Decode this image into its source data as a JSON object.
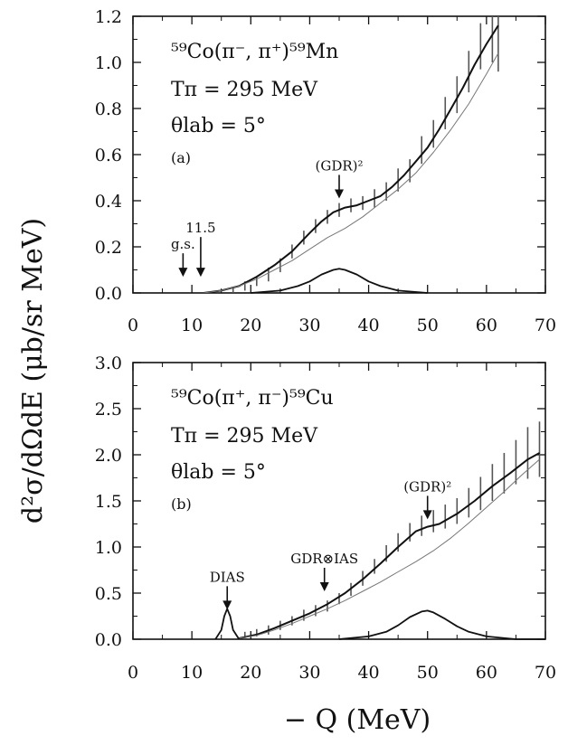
{
  "figure": {
    "ylabel": "d²σ/dΩdE (μb/sr MeV)",
    "xlabel": "− Q  (MeV)"
  },
  "chart_data": [
    {
      "type": "line",
      "panel": "(a)",
      "reaction": "⁵⁹Co(π⁻, π⁺)⁵⁹Mn",
      "energy": "Tπ = 295 MeV",
      "angle": "θlab = 5°",
      "xlim": [
        0,
        70
      ],
      "ylim": [
        0.0,
        1.2
      ],
      "x_ticks": [
        0,
        10,
        20,
        30,
        40,
        50,
        60,
        70
      ],
      "y_ticks": [
        "0.0",
        "0.2",
        "0.4",
        "0.6",
        "0.8",
        "1.0",
        "1.2"
      ],
      "annotations": [
        {
          "label": "g.s.",
          "x": 8.5,
          "tip_y": 0.07
        },
        {
          "label": "11.5",
          "x": 11.5,
          "tip_y": 0.07
        },
        {
          "label": "(GDR)²",
          "x": 35,
          "tip_y": 0.41
        }
      ],
      "series": [
        {
          "kind": "total_fit",
          "x": [
            12,
            15,
            18,
            21,
            24,
            27,
            30,
            32,
            34,
            36,
            38,
            40,
            42,
            44,
            46,
            48,
            50,
            52,
            54,
            56,
            58,
            60,
            62
          ],
          "y": [
            0.0,
            0.01,
            0.03,
            0.07,
            0.12,
            0.18,
            0.26,
            0.31,
            0.35,
            0.37,
            0.38,
            0.4,
            0.42,
            0.46,
            0.51,
            0.57,
            0.63,
            0.71,
            0.8,
            0.89,
            0.99,
            1.08,
            1.16
          ]
        },
        {
          "kind": "background",
          "x": [
            12,
            15,
            18,
            21,
            24,
            27,
            30,
            33,
            36,
            39,
            42,
            45,
            48,
            51,
            54,
            57,
            60,
            62
          ],
          "y": [
            0.0,
            0.01,
            0.03,
            0.06,
            0.1,
            0.14,
            0.19,
            0.24,
            0.28,
            0.33,
            0.39,
            0.45,
            0.52,
            0.61,
            0.71,
            0.82,
            0.95,
            1.04
          ]
        },
        {
          "kind": "gdr2_peak",
          "x": [
            20,
            25,
            28,
            30,
            32,
            34,
            35,
            36,
            38,
            40,
            42,
            45,
            50
          ],
          "y": [
            0.0,
            0.01,
            0.03,
            0.05,
            0.08,
            0.1,
            0.105,
            0.1,
            0.08,
            0.05,
            0.03,
            0.01,
            0.0
          ]
        }
      ],
      "data_points": {
        "x": [
          17,
          19,
          21,
          23,
          25,
          27,
          29,
          31,
          33,
          35,
          37,
          39,
          41,
          43,
          45,
          47,
          49,
          51,
          53,
          55,
          57,
          59,
          61,
          62
        ],
        "y": [
          0.01,
          0.03,
          0.05,
          0.08,
          0.12,
          0.18,
          0.24,
          0.29,
          0.33,
          0.36,
          0.38,
          0.39,
          0.41,
          0.44,
          0.49,
          0.53,
          0.62,
          0.69,
          0.78,
          0.86,
          0.96,
          1.07,
          1.12,
          1.08
        ],
        "err": [
          0.01,
          0.02,
          0.02,
          0.03,
          0.03,
          0.03,
          0.03,
          0.03,
          0.03,
          0.03,
          0.03,
          0.03,
          0.04,
          0.04,
          0.05,
          0.05,
          0.06,
          0.06,
          0.07,
          0.08,
          0.09,
          0.1,
          0.12,
          0.12
        ]
      }
    },
    {
      "type": "line",
      "panel": "(b)",
      "reaction": "⁵⁹Co(π⁺, π⁻)⁵⁹Cu",
      "energy": "Tπ = 295 MeV",
      "angle": "θlab = 5°",
      "xlim": [
        0,
        70
      ],
      "ylim": [
        0.0,
        3.0
      ],
      "x_ticks": [
        0,
        10,
        20,
        30,
        40,
        50,
        60,
        70
      ],
      "y_ticks": [
        "0.0",
        "0.5",
        "1.0",
        "1.5",
        "2.0",
        "2.5",
        "3.0"
      ],
      "annotations": [
        {
          "label": "DIAS",
          "x": 16,
          "tip_y": 0.32
        },
        {
          "label": "GDR⊗IAS",
          "x": 32.5,
          "tip_y": 0.52
        },
        {
          "label": "(GDR)²",
          "x": 50,
          "tip_y": 1.3
        }
      ],
      "series": [
        {
          "kind": "total_fit",
          "x": [
            18,
            21,
            24,
            27,
            30,
            33,
            36,
            39,
            42,
            45,
            48,
            50,
            52,
            55,
            58,
            61,
            64,
            67,
            69
          ],
          "y": [
            0.01,
            0.05,
            0.12,
            0.2,
            0.28,
            0.38,
            0.5,
            0.65,
            0.82,
            1.0,
            1.17,
            1.22,
            1.25,
            1.36,
            1.5,
            1.66,
            1.8,
            1.95,
            2.02
          ]
        },
        {
          "kind": "background",
          "x": [
            18,
            21,
            24,
            27,
            30,
            33,
            36,
            39,
            42,
            45,
            48,
            51,
            54,
            57,
            60,
            63,
            66,
            69
          ],
          "y": [
            0.01,
            0.04,
            0.1,
            0.17,
            0.25,
            0.33,
            0.42,
            0.52,
            0.62,
            0.73,
            0.84,
            0.96,
            1.1,
            1.26,
            1.43,
            1.6,
            1.78,
            1.95
          ]
        },
        {
          "kind": "gdr2_peak",
          "x": [
            35,
            40,
            43,
            45,
            47,
            49,
            50,
            51,
            53,
            55,
            57,
            60,
            65,
            70
          ],
          "y": [
            0.0,
            0.03,
            0.08,
            0.15,
            0.24,
            0.3,
            0.31,
            0.29,
            0.22,
            0.14,
            0.08,
            0.03,
            0.0,
            0.0
          ]
        },
        {
          "kind": "dias_peak",
          "x": [
            14,
            15,
            15.5,
            16,
            16.5,
            17,
            18
          ],
          "y": [
            0.0,
            0.1,
            0.25,
            0.33,
            0.25,
            0.1,
            0.0
          ]
        }
      ],
      "data_points": {
        "x": [
          19,
          21,
          23,
          25,
          27,
          29,
          31,
          33,
          35,
          37,
          39,
          41,
          43,
          45,
          47,
          49,
          51,
          53,
          55,
          57,
          59,
          61,
          63,
          65,
          67,
          69
        ],
        "y": [
          0.04,
          0.07,
          0.1,
          0.15,
          0.2,
          0.26,
          0.31,
          0.36,
          0.44,
          0.54,
          0.66,
          0.79,
          0.93,
          1.05,
          1.16,
          1.23,
          1.28,
          1.33,
          1.39,
          1.48,
          1.58,
          1.7,
          1.8,
          1.92,
          2.02,
          2.06
        ],
        "err": [
          0.04,
          0.04,
          0.05,
          0.05,
          0.05,
          0.06,
          0.06,
          0.06,
          0.06,
          0.07,
          0.08,
          0.08,
          0.09,
          0.1,
          0.1,
          0.11,
          0.12,
          0.13,
          0.14,
          0.16,
          0.18,
          0.2,
          0.22,
          0.24,
          0.28,
          0.3
        ]
      }
    }
  ]
}
